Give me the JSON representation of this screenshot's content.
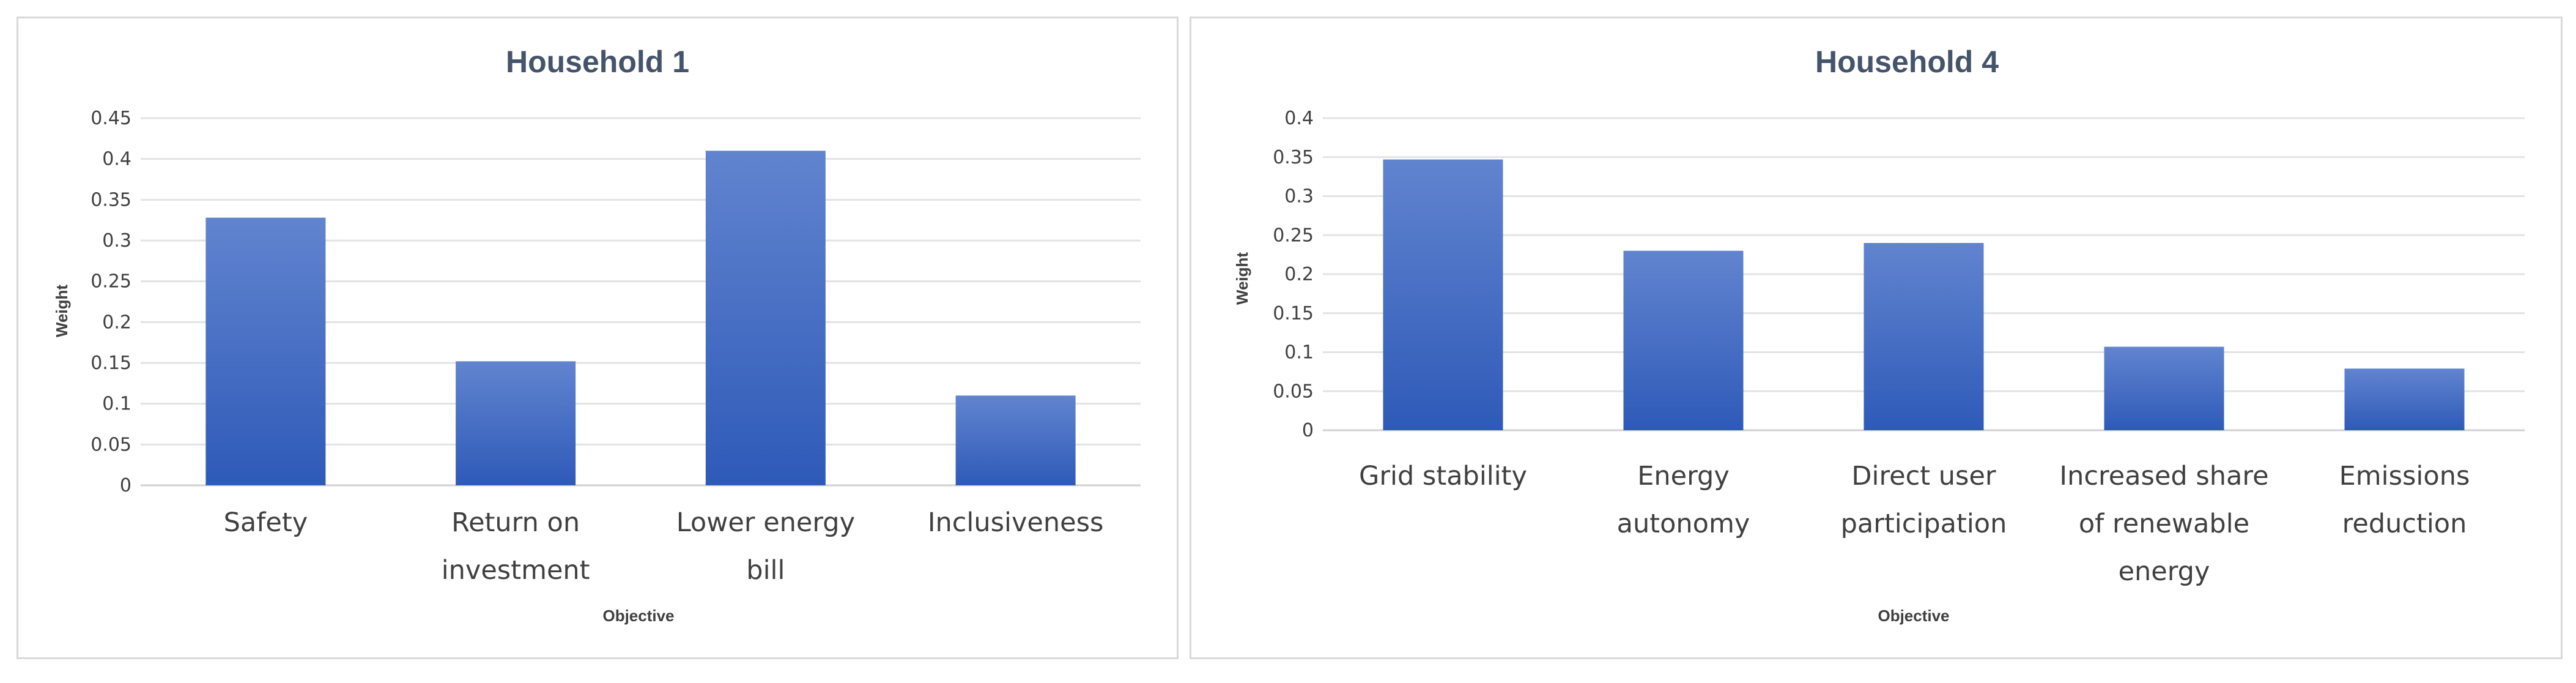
{
  "colors": {
    "bar_top": "#6184cf",
    "bar_bottom": "#2e5ab8",
    "grid": "#e3e3e3",
    "text": "#404040",
    "title": "#44546a"
  },
  "chart_data": [
    {
      "type": "bar",
      "title": "Household 1",
      "xlabel": "Objective",
      "ylabel": "Weight",
      "ylim": [
        0,
        0.45
      ],
      "yticks": [
        0,
        0.05,
        0.1,
        0.15,
        0.2,
        0.25,
        0.3,
        0.35,
        0.4,
        0.45
      ],
      "ytick_labels": [
        "0",
        "0.05",
        "0.1",
        "0.15",
        "0.2",
        "0.25",
        "0.3",
        "0.35",
        "0.4",
        "0.45"
      ],
      "categories": [
        [
          "Safety"
        ],
        [
          "Return on",
          "investment"
        ],
        [
          "Lower energy",
          "bill"
        ],
        [
          "Inclusiveness"
        ]
      ],
      "values": [
        0.328,
        0.152,
        0.41,
        0.11
      ]
    },
    {
      "type": "bar",
      "title": "Household 4",
      "xlabel": "Objective",
      "ylabel": "Weight",
      "ylim": [
        0,
        0.4
      ],
      "yticks": [
        0,
        0.05,
        0.1,
        0.15,
        0.2,
        0.25,
        0.3,
        0.35,
        0.4
      ],
      "ytick_labels": [
        "0",
        "0.05",
        "0.1",
        "0.15",
        "0.2",
        "0.25",
        "0.3",
        "0.35",
        "0.4"
      ],
      "categories": [
        [
          "Grid stability"
        ],
        [
          "Energy",
          "autonomy"
        ],
        [
          "Direct user",
          "participation"
        ],
        [
          "Increased share",
          "of renewable",
          "energy"
        ],
        [
          "Emissions",
          "reduction"
        ]
      ],
      "values": [
        0.347,
        0.23,
        0.24,
        0.107,
        0.079
      ]
    }
  ]
}
